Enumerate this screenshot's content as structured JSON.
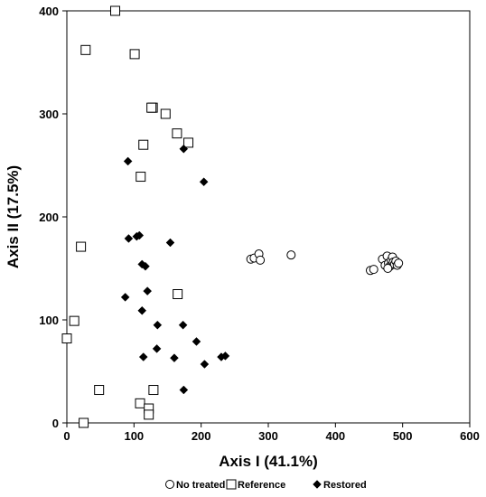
{
  "chart_data": {
    "type": "scatter",
    "title": "",
    "xlabel": "Axis I (41.1%)",
    "ylabel": "Axis II (17.5%)",
    "xlim": [
      0,
      600
    ],
    "ylim": [
      0,
      400
    ],
    "xticks": [
      0,
      100,
      200,
      300,
      400,
      500,
      600
    ],
    "yticks": [
      0,
      100,
      200,
      300,
      400
    ],
    "grid": false,
    "legend_position": "bottom",
    "series": [
      {
        "name": "No treated",
        "marker": "circle-open",
        "color": "#000000",
        "points": [
          [
            274,
            159
          ],
          [
            279,
            160
          ],
          [
            286,
            164
          ],
          [
            288,
            158
          ],
          [
            334,
            163
          ],
          [
            452,
            148
          ],
          [
            457,
            149
          ],
          [
            470,
            159
          ],
          [
            474,
            153
          ],
          [
            477,
            162
          ],
          [
            479,
            155
          ],
          [
            481,
            152
          ],
          [
            483,
            158
          ],
          [
            485,
            161
          ],
          [
            486,
            156
          ],
          [
            488,
            154
          ],
          [
            490,
            157
          ],
          [
            492,
            153
          ],
          [
            494,
            155
          ],
          [
            478,
            150
          ]
        ]
      },
      {
        "name": "Reference",
        "marker": "square-open",
        "color": "#000000",
        "points": [
          [
            72,
            400
          ],
          [
            28,
            362
          ],
          [
            101,
            358
          ],
          [
            128,
            306
          ],
          [
            126,
            306
          ],
          [
            147,
            300
          ],
          [
            164,
            281
          ],
          [
            181,
            272
          ],
          [
            114,
            270
          ],
          [
            110,
            239
          ],
          [
            21,
            171
          ],
          [
            165,
            125
          ],
          [
            11,
            99
          ],
          [
            0,
            82
          ],
          [
            48,
            32
          ],
          [
            129,
            32
          ],
          [
            109,
            19
          ],
          [
            122,
            14
          ],
          [
            122,
            8
          ],
          [
            25,
            0
          ]
        ]
      },
      {
        "name": "Restored",
        "marker": "diamond-filled",
        "color": "#000000",
        "points": [
          [
            91,
            254
          ],
          [
            174,
            266
          ],
          [
            204,
            234
          ],
          [
            104,
            181
          ],
          [
            108,
            182
          ],
          [
            92,
            179
          ],
          [
            154,
            175
          ],
          [
            112,
            154
          ],
          [
            117,
            152
          ],
          [
            120,
            128
          ],
          [
            87,
            122
          ],
          [
            112,
            109
          ],
          [
            135,
            95
          ],
          [
            173,
            95
          ],
          [
            193,
            79
          ],
          [
            134,
            72
          ],
          [
            114,
            64
          ],
          [
            160,
            63
          ],
          [
            205,
            57
          ],
          [
            230,
            64
          ],
          [
            236,
            65
          ],
          [
            174,
            32
          ]
        ]
      }
    ]
  }
}
